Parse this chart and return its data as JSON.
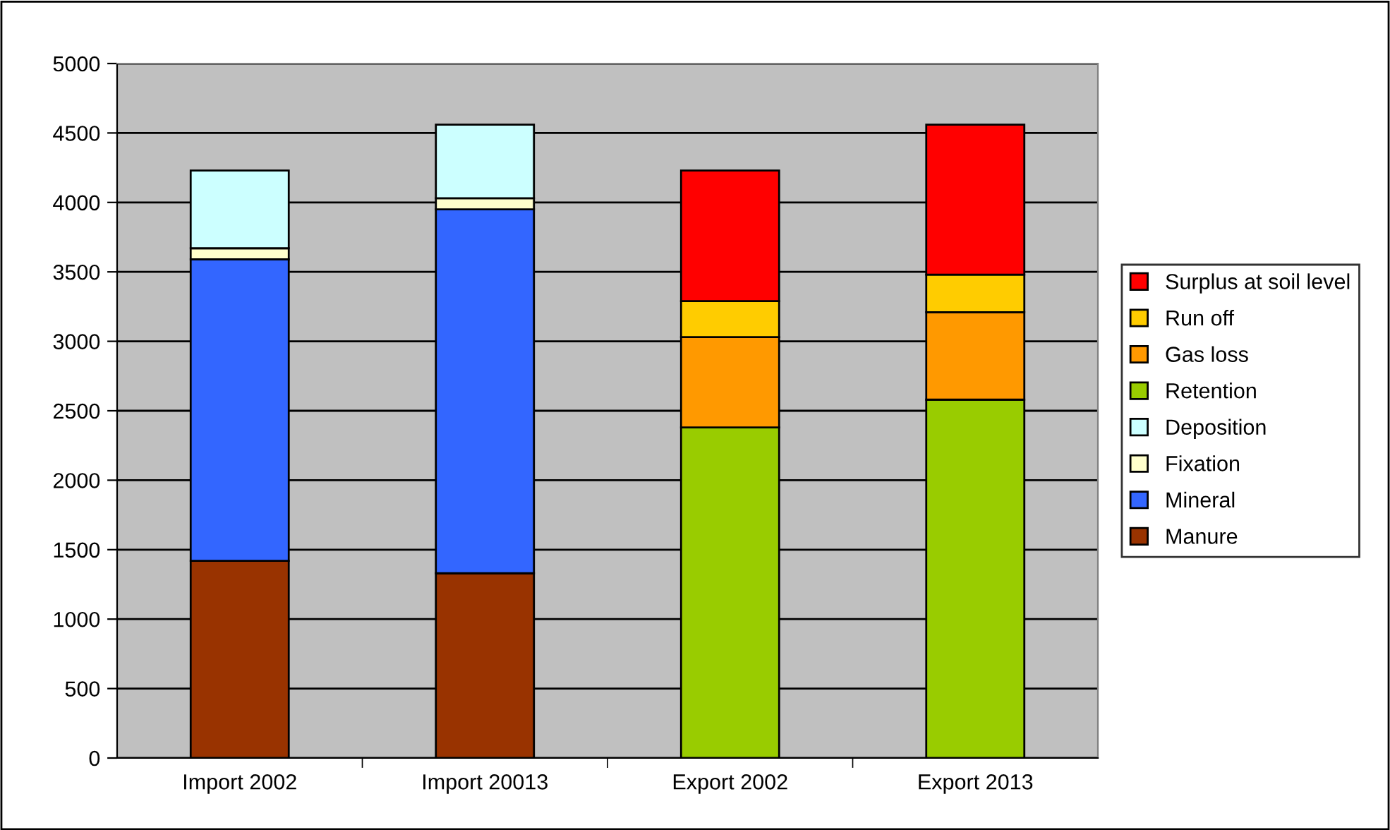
{
  "chart_data": {
    "type": "bar",
    "stacked": true,
    "categories": [
      "Import 2002",
      "Import 20013",
      "Export 2002",
      "Export 2013"
    ],
    "series": [
      {
        "name": "Manure",
        "color": "#993300",
        "values": [
          1420,
          1330,
          null,
          null
        ]
      },
      {
        "name": "Mineral",
        "color": "#3366ff",
        "values": [
          2170,
          2620,
          null,
          null
        ]
      },
      {
        "name": "Fixation",
        "color": "#ffffcc",
        "values": [
          80,
          80,
          null,
          null
        ]
      },
      {
        "name": "Deposition",
        "color": "#ccffff",
        "values": [
          560,
          530,
          null,
          null
        ]
      },
      {
        "name": "Retention",
        "color": "#99cc00",
        "values": [
          null,
          null,
          2380,
          2580
        ]
      },
      {
        "name": "Gas loss",
        "color": "#ff9900",
        "values": [
          null,
          null,
          650,
          630
        ]
      },
      {
        "name": "Run off",
        "color": "#ffcc00",
        "values": [
          null,
          null,
          260,
          270
        ]
      },
      {
        "name": "Surplus at soil level",
        "color": "#ff0000",
        "values": [
          null,
          null,
          940,
          1080
        ]
      }
    ],
    "ylim": [
      0,
      5000
    ],
    "yticks": [
      0,
      500,
      1000,
      1500,
      2000,
      2500,
      3000,
      3500,
      4000,
      4500,
      5000
    ],
    "grid": "y",
    "legend": "right"
  }
}
